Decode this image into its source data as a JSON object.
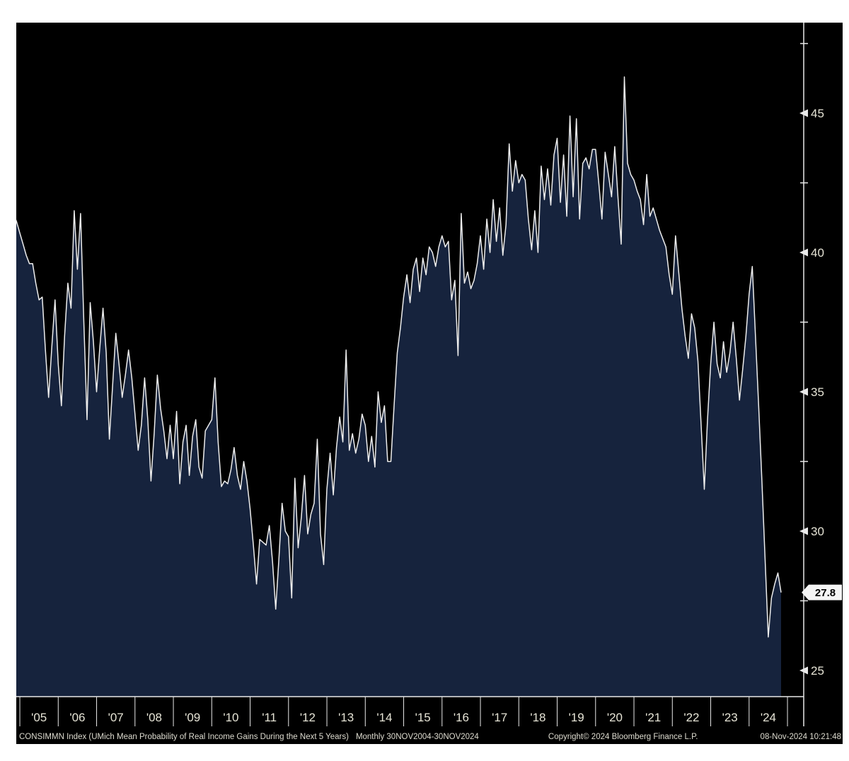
{
  "terminal": {
    "bg_color": "#000000",
    "area_fill_color": "#16233d",
    "line_color": "#ededed",
    "axis_color": "#e9e9e9",
    "tick_label_color": "#e6e4d6",
    "badge_bg_color": "#f5f5f5",
    "badge_text_color": "#000000"
  },
  "last_value_label": "27.8",
  "footer": {
    "left_desc": "CONSIMMN Index (UMich Mean Probability of Real Income Gains During the Next 5 Years)",
    "left_range": "Monthly 30NOV2004-30NOV2024",
    "center": "Copyright© 2024 Bloomberg Finance L.P.",
    "right": "08-Nov-2024 10:21:48"
  },
  "chart_data": {
    "type": "area",
    "title": "CONSIMMN Index (UMich Mean Probability of Real Income Gains During the Next 5 Years)",
    "frequency": "monthly",
    "start_month": "2004-11",
    "end_month": "2024-11",
    "x_tick_labels": [
      "'05",
      "'06",
      "'07",
      "'08",
      "'09",
      "'10",
      "'11",
      "'12",
      "'13",
      "'14",
      "'15",
      "'16",
      "'17",
      "'18",
      "'19",
      "'20",
      "'21",
      "'22",
      "'23",
      "'24"
    ],
    "y_ticks": [
      25,
      30,
      35,
      40,
      45
    ],
    "y_minor_ticks": [
      27.5,
      32.5,
      37.5,
      42.5,
      47.5
    ],
    "ylim": [
      24.06,
      48.25
    ],
    "grid": false,
    "legend": "none",
    "last_value": 27.8,
    "series": [
      {
        "name": "CONSIMMN Index",
        "values": [
          41.4,
          41.1,
          40.7,
          40.3,
          39.9,
          39.6,
          39.6,
          38.9,
          38.3,
          38.4,
          36.5,
          34.8,
          36.6,
          38.3,
          36.0,
          34.5,
          37.0,
          38.9,
          38.0,
          41.5,
          39.4,
          41.4,
          37.5,
          34.0,
          38.2,
          36.8,
          35.0,
          36.6,
          38.0,
          36.4,
          33.3,
          35.2,
          37.1,
          36.0,
          34.8,
          35.6,
          36.5,
          35.5,
          34.2,
          32.9,
          33.8,
          35.5,
          34.0,
          31.8,
          33.5,
          35.6,
          34.4,
          33.6,
          32.6,
          33.8,
          32.6,
          34.3,
          31.7,
          33.2,
          33.8,
          32.0,
          33.4,
          34.0,
          32.3,
          31.9,
          33.6,
          33.8,
          34.0,
          35.5,
          33.2,
          31.6,
          31.8,
          31.7,
          32.2,
          33.0,
          32.0,
          31.5,
          32.5,
          31.8,
          30.8,
          29.5,
          28.1,
          29.7,
          29.6,
          29.5,
          30.2,
          28.9,
          27.2,
          29.0,
          31.0,
          30.0,
          29.8,
          27.6,
          31.9,
          29.4,
          30.5,
          32.0,
          29.9,
          30.6,
          31.0,
          33.3,
          29.9,
          28.8,
          31.5,
          32.8,
          31.3,
          33.0,
          34.1,
          33.2,
          36.5,
          32.9,
          33.5,
          32.8,
          33.3,
          34.2,
          33.8,
          32.5,
          33.4,
          32.3,
          35.0,
          33.9,
          34.5,
          32.5,
          32.5,
          34.5,
          36.4,
          37.3,
          38.4,
          39.2,
          38.2,
          39.4,
          39.8,
          38.6,
          39.8,
          39.2,
          40.2,
          40.0,
          39.5,
          40.2,
          40.6,
          40.2,
          40.4,
          38.3,
          39.0,
          36.3,
          41.4,
          38.9,
          39.3,
          38.7,
          39.0,
          39.6,
          40.6,
          39.4,
          41.2,
          40.0,
          41.9,
          40.4,
          41.6,
          39.9,
          41.0,
          43.9,
          42.2,
          43.3,
          42.5,
          42.8,
          42.6,
          41.2,
          40.1,
          41.5,
          40.0,
          43.1,
          41.9,
          43.0,
          41.7,
          43.5,
          44.1,
          41.8,
          43.5,
          41.3,
          44.9,
          42.0,
          44.8,
          41.2,
          43.2,
          43.4,
          43.0,
          43.7,
          43.7,
          42.5,
          41.2,
          43.6,
          42.8,
          42.0,
          43.8,
          42.0,
          40.3,
          46.3,
          43.2,
          42.8,
          42.6,
          42.2,
          41.9,
          41.0,
          42.8,
          41.3,
          41.6,
          41.2,
          40.8,
          40.5,
          40.2,
          39.2,
          38.5,
          40.6,
          39.3,
          38.0,
          37.0,
          36.2,
          37.8,
          37.3,
          36.1,
          33.8,
          31.5,
          34.0,
          36.0,
          37.5,
          36.0,
          35.5,
          36.8,
          35.7,
          36.4,
          37.5,
          36.2,
          34.7,
          35.8,
          37.0,
          38.5,
          39.5,
          37.0,
          34.5,
          31.8,
          29.0,
          26.2,
          27.6,
          28.1,
          28.5,
          27.8
        ]
      }
    ]
  }
}
